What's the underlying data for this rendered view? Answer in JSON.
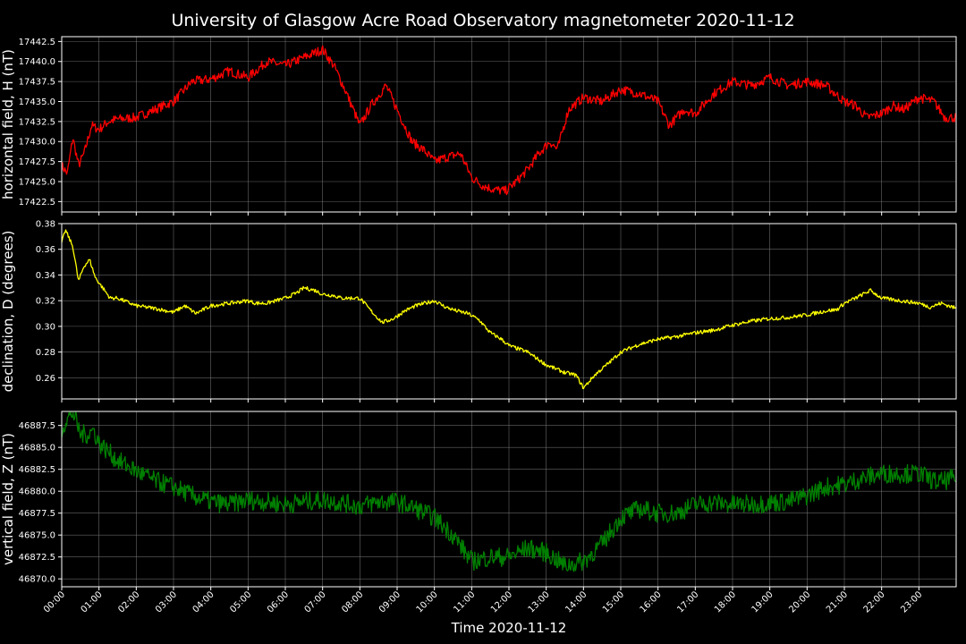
{
  "chart_data": {
    "type": "line",
    "title": "University of Glasgow Acre Road Observatory magnetometer 2020-11-12",
    "xlabel": "Time 2020-11-12",
    "x_ticks": [
      "00:00",
      "01:00",
      "02:00",
      "03:00",
      "04:00",
      "05:00",
      "06:00",
      "07:00",
      "08:00",
      "09:00",
      "10:00",
      "11:00",
      "12:00",
      "13:00",
      "14:00",
      "15:00",
      "16:00",
      "17:00",
      "18:00",
      "19:00",
      "20:00",
      "21:00",
      "22:00",
      "23:00"
    ],
    "xlim": [
      0,
      24
    ],
    "grid": true,
    "panels": [
      {
        "ylabel": "horizontal field, H (nT)",
        "color": "#ff0000",
        "ylim": [
          17421.2,
          17443.1
        ],
        "y_ticks": [
          "17442.5",
          "17440.0",
          "17437.5",
          "17435.0",
          "17432.5",
          "17430.0",
          "17427.5",
          "17425.0",
          "17422.5"
        ],
        "y_tick_values": [
          17442.5,
          17440.0,
          17437.5,
          17435.0,
          17432.5,
          17430.0,
          17427.5,
          17425.0,
          17422.5
        ],
        "noise": 0.6,
        "series": {
          "x": [
            0.0,
            0.15,
            0.3,
            0.45,
            0.6,
            0.8,
            1.0,
            1.25,
            1.5,
            2.0,
            2.5,
            3.0,
            3.5,
            4.0,
            4.5,
            5.0,
            5.5,
            6.0,
            6.5,
            7.0,
            7.3,
            7.6,
            8.0,
            8.3,
            8.7,
            9.0,
            9.4,
            9.7,
            10.0,
            10.3,
            10.7,
            11.0,
            11.3,
            11.6,
            11.9,
            12.2,
            12.5,
            12.8,
            13.1,
            13.3,
            13.6,
            14.0,
            14.5,
            15.0,
            15.5,
            16.0,
            16.3,
            16.7,
            17.0,
            17.5,
            18.0,
            18.5,
            19.0,
            19.5,
            20.0,
            20.5,
            21.0,
            21.3,
            21.6,
            22.0,
            22.3,
            22.6,
            23.0,
            23.4,
            23.7,
            24.0
          ],
          "values": [
            17427.0,
            17426.0,
            17430.5,
            17427.0,
            17428.5,
            17432.0,
            17431.5,
            17432.5,
            17432.8,
            17433.0,
            17434.0,
            17435.0,
            17437.5,
            17437.8,
            17438.8,
            17438.0,
            17440.0,
            17439.5,
            17440.5,
            17441.5,
            17439.5,
            17436.5,
            17432.0,
            17434.5,
            17437.0,
            17434.0,
            17430.0,
            17429.0,
            17427.5,
            17428.0,
            17428.5,
            17425.5,
            17424.5,
            17424.0,
            17423.8,
            17425.0,
            17426.5,
            17428.5,
            17430.0,
            17429.0,
            17434.0,
            17435.5,
            17435.0,
            17436.5,
            17436.0,
            17435.0,
            17432.0,
            17434.0,
            17433.5,
            17436.0,
            17437.5,
            17437.0,
            17438.0,
            17437.0,
            17437.5,
            17437.0,
            17435.0,
            17434.5,
            17433.0,
            17433.5,
            17434.5,
            17434.0,
            17435.5,
            17435.0,
            17433.0,
            17433.0
          ]
        }
      },
      {
        "ylabel": "declination, D (degrees)",
        "color": "#ffff00",
        "ylim": [
          0.2435,
          0.38
        ],
        "y_ticks": [
          "0.38",
          "0.36",
          "0.34",
          "0.32",
          "0.30",
          "0.28",
          "0.26"
        ],
        "y_tick_values": [
          0.38,
          0.36,
          0.34,
          0.32,
          0.3,
          0.28,
          0.26
        ],
        "noise": 0.0015,
        "series": {
          "x": [
            0.0,
            0.1,
            0.3,
            0.45,
            0.6,
            0.75,
            0.9,
            1.1,
            1.3,
            1.5,
            2.0,
            2.5,
            3.0,
            3.3,
            3.6,
            4.0,
            4.5,
            5.0,
            5.2,
            5.5,
            6.0,
            6.3,
            6.5,
            6.8,
            7.0,
            7.3,
            7.5,
            8.0,
            8.3,
            8.6,
            8.9,
            9.2,
            9.5,
            10.0,
            10.3,
            10.6,
            10.9,
            11.2,
            11.5,
            11.8,
            12.0,
            12.5,
            13.0,
            13.5,
            13.8,
            14.0,
            14.3,
            14.7,
            15.0,
            15.5,
            16.0,
            16.5,
            17.0,
            17.5,
            18.0,
            18.5,
            19.0,
            19.5,
            20.0,
            20.5,
            20.8,
            21.0,
            21.3,
            21.7,
            22.0,
            22.5,
            23.0,
            23.3,
            23.6,
            24.0
          ],
          "values": [
            0.365,
            0.375,
            0.362,
            0.335,
            0.347,
            0.352,
            0.338,
            0.33,
            0.322,
            0.322,
            0.316,
            0.314,
            0.311,
            0.316,
            0.31,
            0.316,
            0.318,
            0.32,
            0.318,
            0.318,
            0.322,
            0.326,
            0.33,
            0.328,
            0.325,
            0.324,
            0.322,
            0.322,
            0.312,
            0.303,
            0.306,
            0.312,
            0.316,
            0.32,
            0.315,
            0.312,
            0.31,
            0.305,
            0.295,
            0.29,
            0.285,
            0.28,
            0.27,
            0.264,
            0.262,
            0.252,
            0.262,
            0.272,
            0.28,
            0.286,
            0.29,
            0.292,
            0.295,
            0.297,
            0.301,
            0.304,
            0.306,
            0.307,
            0.309,
            0.312,
            0.313,
            0.318,
            0.322,
            0.328,
            0.322,
            0.32,
            0.318,
            0.315,
            0.318,
            0.314
          ]
        }
      },
      {
        "ylabel": "vertical field, Z (nT)",
        "color": "#008000",
        "ylim": [
          46869.1,
          46889.1
        ],
        "y_ticks": [
          "46887.5",
          "46885.0",
          "46882.5",
          "46880.0",
          "46877.5",
          "46875.0",
          "46872.5",
          "46870.0"
        ],
        "y_tick_values": [
          46887.5,
          46885.0,
          46882.5,
          46880.0,
          46877.5,
          46875.0,
          46872.5,
          46870.0
        ],
        "noise": 1.1,
        "series": {
          "x": [
            0.0,
            0.1,
            0.3,
            0.5,
            0.7,
            0.85,
            1.0,
            1.5,
            2.0,
            2.5,
            3.0,
            3.5,
            4.0,
            4.5,
            5.0,
            5.5,
            6.0,
            6.5,
            7.0,
            7.5,
            8.0,
            8.5,
            9.0,
            9.5,
            10.0,
            10.5,
            11.0,
            11.5,
            12.0,
            12.5,
            13.0,
            13.5,
            14.0,
            14.5,
            15.0,
            15.5,
            16.0,
            16.5,
            17.0,
            17.5,
            18.0,
            18.5,
            19.0,
            19.5,
            20.0,
            20.5,
            21.0,
            21.5,
            22.0,
            22.5,
            23.0,
            23.5,
            24.0
          ],
          "values": [
            46887.0,
            46888.0,
            46889.0,
            46886.5,
            46886.5,
            46887.0,
            46885.5,
            46883.5,
            46882.3,
            46881.2,
            46880.5,
            46879.5,
            46878.8,
            46878.5,
            46879.0,
            46878.8,
            46878.5,
            46878.8,
            46879.0,
            46878.7,
            46878.3,
            46878.8,
            46878.8,
            46878.0,
            46877.0,
            46875.0,
            46872.0,
            46872.5,
            46872.5,
            46873.5,
            46873.0,
            46871.5,
            46872.0,
            46874.0,
            46877.0,
            46878.0,
            46877.5,
            46877.5,
            46878.5,
            46878.7,
            46878.5,
            46878.5,
            46878.7,
            46878.8,
            46879.5,
            46880.5,
            46880.8,
            46881.5,
            46882.0,
            46882.0,
            46882.0,
            46881.0,
            46881.5
          ]
        }
      }
    ]
  }
}
